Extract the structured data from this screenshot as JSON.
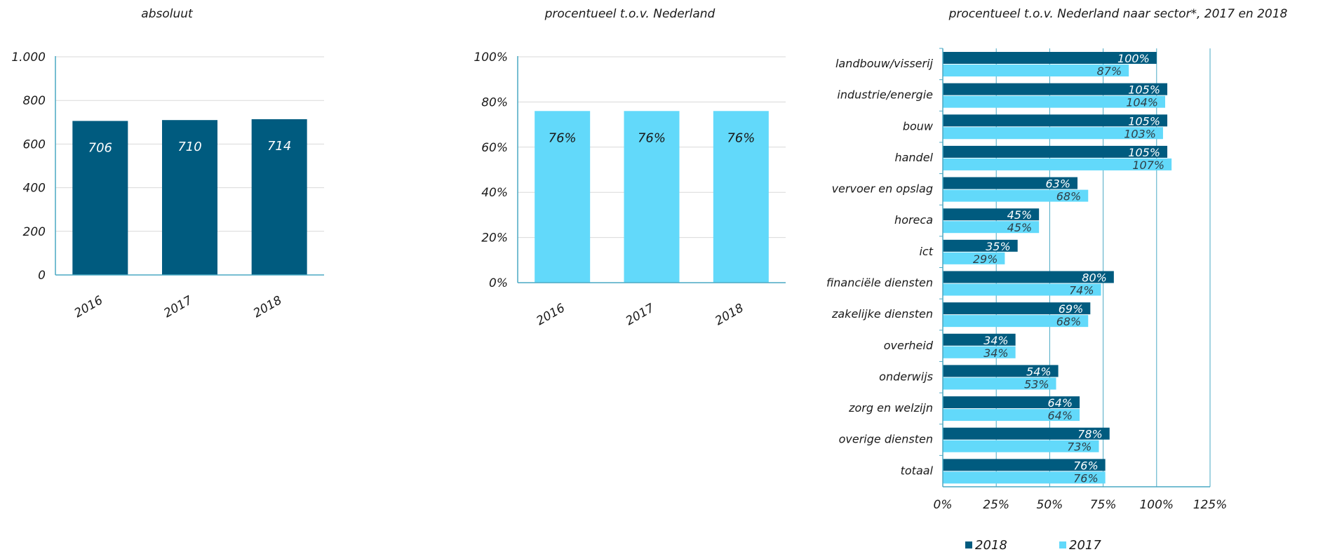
{
  "colors": {
    "dark": "#005b7f",
    "light": "#62d9fa",
    "axis": "#4aa9c4",
    "grid": "#d9d9d9"
  },
  "chart_data": [
    {
      "type": "bar",
      "title": "absoluut",
      "categories": [
        "2016",
        "2017",
        "2018"
      ],
      "values": [
        706,
        710,
        714
      ],
      "value_labels": [
        "706",
        "710",
        "714"
      ],
      "ylim": [
        0,
        1000
      ],
      "yticks": [
        0,
        200,
        400,
        600,
        800,
        1000
      ],
      "ytick_labels": [
        "0",
        "200",
        "400",
        "600",
        "800",
        "1.000"
      ],
      "grid": true
    },
    {
      "type": "bar",
      "title": "procentueel t.o.v. Nederland",
      "categories": [
        "2016",
        "2017",
        "2018"
      ],
      "values": [
        76,
        76,
        76
      ],
      "value_labels": [
        "76%",
        "76%",
        "76%"
      ],
      "ylim": [
        0,
        100
      ],
      "yticks": [
        0,
        20,
        40,
        60,
        80,
        100
      ],
      "ytick_labels": [
        "0%",
        "20%",
        "40%",
        "60%",
        "80%",
        "100%"
      ],
      "grid": true
    },
    {
      "type": "bar",
      "orientation": "horizontal",
      "title": "procentueel t.o.v. Nederland naar sector*, 2017 en 2018",
      "categories": [
        "landbouw/visserij",
        "industrie/energie",
        "bouw",
        "handel",
        "vervoer en opslag",
        "horeca",
        "ict",
        "financiële diensten",
        "zakelijke diensten",
        "overheid",
        "onderwijs",
        "zorg en welzijn",
        "overige diensten",
        "totaal"
      ],
      "series": [
        {
          "name": "2018",
          "values": [
            100,
            105,
            105,
            105,
            63,
            45,
            35,
            80,
            69,
            34,
            54,
            64,
            78,
            76
          ],
          "value_labels": [
            "100%",
            "105%",
            "105%",
            "105%",
            "63%",
            "45%",
            "35%",
            "80%",
            "69%",
            "34%",
            "54%",
            "64%",
            "78%",
            "76%"
          ]
        },
        {
          "name": "2017",
          "values": [
            87,
            104,
            103,
            107,
            68,
            45,
            29,
            74,
            68,
            34,
            53,
            64,
            73,
            76
          ],
          "value_labels": [
            "87%",
            "104%",
            "103%",
            "107%",
            "68%",
            "45%",
            "29%",
            "74%",
            "68%",
            "34%",
            "53%",
            "64%",
            "73%",
            "76%"
          ]
        }
      ],
      "xlim": [
        0,
        125
      ],
      "xticks": [
        0,
        25,
        50,
        75,
        100,
        125
      ],
      "xtick_labels": [
        "0%",
        "25%",
        "50%",
        "75%",
        "100%",
        "125%"
      ],
      "grid": true,
      "legend": "bottom"
    }
  ]
}
